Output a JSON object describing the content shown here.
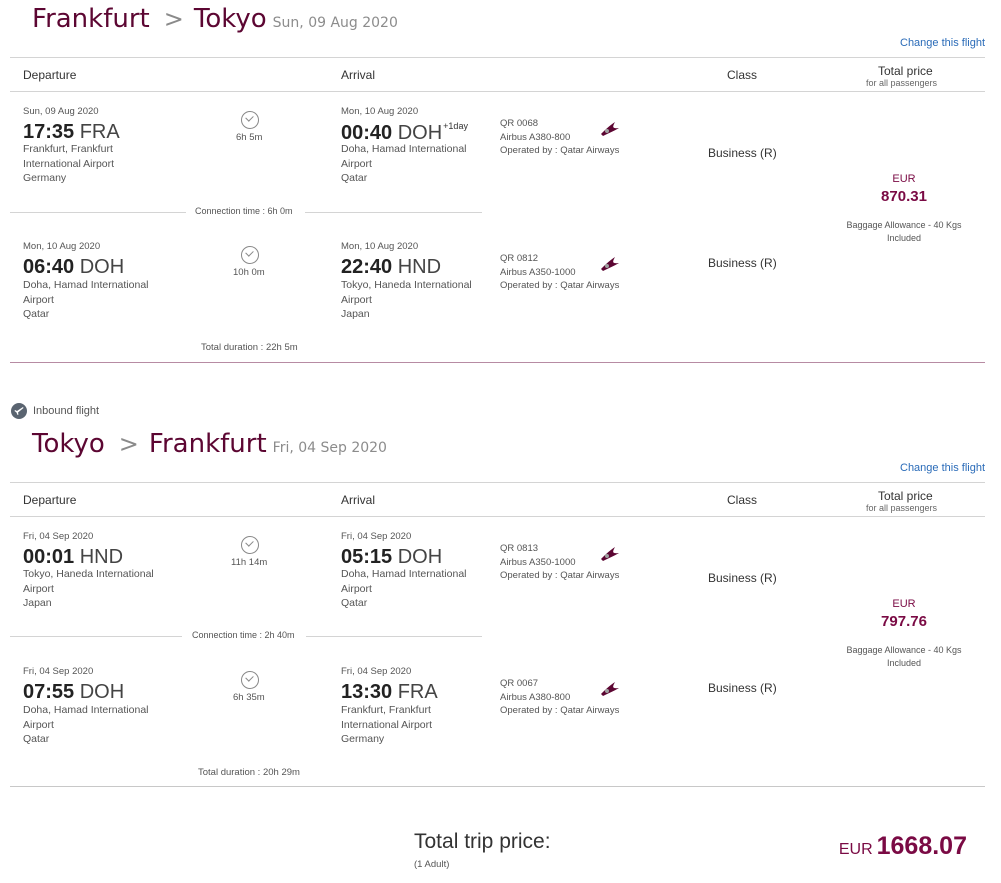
{
  "change_label": "Change this flight",
  "columns": {
    "departure": "Departure",
    "arrival": "Arrival",
    "class": "Class",
    "total_price": "Total price",
    "total_price_sub": "for all passengers"
  },
  "outbound": {
    "origin": "Frankfurt",
    "destination": "Tokyo",
    "date": "Sun, 09 Aug 2020",
    "segments": [
      {
        "dep_date": "Sun, 09 Aug 2020",
        "dep_time": "17:35",
        "dep_code": "FRA",
        "dep_place": "Frankfurt, Frankfurt International Airport",
        "dep_country": "Germany",
        "duration": "6h 5m",
        "arr_date": "Mon, 10 Aug 2020",
        "arr_time": "00:40",
        "arr_code": "DOH",
        "arr_plus": "+1day",
        "arr_place": "Doha, Hamad International Airport",
        "arr_country": "Qatar",
        "flight_no": "QR 0068",
        "aircraft": "Airbus A380-800",
        "operated": "Operated by : Qatar Airways",
        "class": "Business (R)"
      },
      {
        "dep_date": "Mon, 10 Aug 2020",
        "dep_time": "06:40",
        "dep_code": "DOH",
        "dep_place": "Doha, Hamad International Airport",
        "dep_country": "Qatar",
        "duration": "10h 0m",
        "arr_date": "Mon, 10 Aug 2020",
        "arr_time": "22:40",
        "arr_code": "HND",
        "arr_plus": "",
        "arr_place": "Tokyo, Haneda International Airport",
        "arr_country": "Japan",
        "flight_no": "QR 0812",
        "aircraft": "Airbus A350-1000",
        "operated": "Operated by : Qatar Airways",
        "class": "Business (R)"
      }
    ],
    "connection": "Connection time : 6h 0m",
    "total_duration": "Total duration : 22h 5m",
    "price_currency": "EUR",
    "price_value": "870.31",
    "baggage_line1": "Baggage Allowance - 40 Kgs",
    "baggage_line2": "Included"
  },
  "inbound_label": "Inbound flight",
  "inbound": {
    "origin": "Tokyo",
    "destination": "Frankfurt",
    "date": "Fri, 04 Sep 2020",
    "segments": [
      {
        "dep_date": "Fri, 04 Sep 2020",
        "dep_time": "00:01",
        "dep_code": "HND",
        "dep_place": "Tokyo, Haneda International Airport",
        "dep_country": "Japan",
        "duration": "11h 14m",
        "arr_date": "Fri, 04 Sep 2020",
        "arr_time": "05:15",
        "arr_code": "DOH",
        "arr_plus": "",
        "arr_place": "Doha, Hamad International Airport",
        "arr_country": "Qatar",
        "flight_no": "QR 0813",
        "aircraft": "Airbus A350-1000",
        "operated": "Operated by : Qatar Airways",
        "class": "Business (R)"
      },
      {
        "dep_date": "Fri, 04 Sep 2020",
        "dep_time": "07:55",
        "dep_code": "DOH",
        "dep_place": "Doha, Hamad International Airport",
        "dep_country": "Qatar",
        "duration": "6h 35m",
        "arr_date": "Fri, 04 Sep 2020",
        "arr_time": "13:30",
        "arr_code": "FRA",
        "arr_plus": "",
        "arr_place": "Frankfurt, Frankfurt International Airport",
        "arr_country": "Germany",
        "flight_no": "QR 0067",
        "aircraft": "Airbus A380-800",
        "operated": "Operated by : Qatar Airways",
        "class": "Business (R)"
      }
    ],
    "connection": "Connection time : 2h 40m",
    "total_duration": "Total duration : 20h 29m",
    "price_currency": "EUR",
    "price_value": "797.76",
    "baggage_line1": "Baggage Allowance - 40 Kgs",
    "baggage_line2": "Included"
  },
  "total": {
    "label": "Total trip price:",
    "sub": "(1 Adult)",
    "currency": "EUR",
    "value": "1668.07"
  },
  "colors": {
    "brand": "#5c0632",
    "price": "#7a0a44",
    "link": "#2a6bb8"
  },
  "icons": {
    "duration": "clock-check-icon",
    "airline": "qatar-airways-logo-icon",
    "inbound": "plane-inbound-icon"
  }
}
